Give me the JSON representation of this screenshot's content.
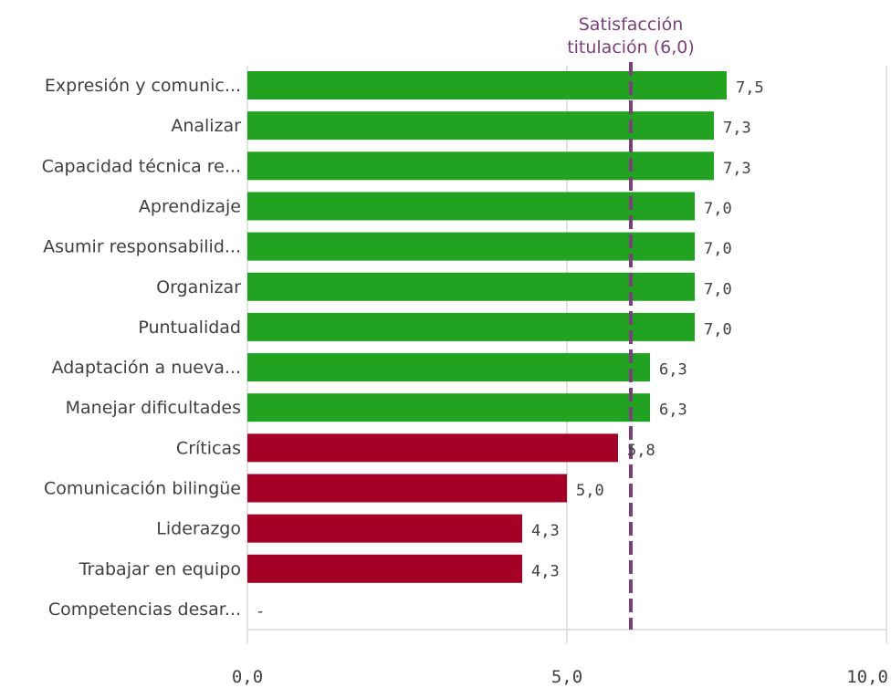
{
  "chart_data": {
    "type": "bar",
    "orientation": "horizontal",
    "categories": [
      "Expresión y comunic...",
      "Analizar",
      "Capacidad técnica re...",
      "Aprendizaje",
      "Asumir responsabilid...",
      "Organizar",
      "Puntualidad",
      "Adaptación a nueva...",
      "Manejar dificultades",
      "Críticas",
      "Comunicación bilingüe",
      "Liderazgo",
      "Trabajar en equipo",
      "Competencias desar..."
    ],
    "values": [
      7.5,
      7.3,
      7.3,
      7.0,
      7.0,
      7.0,
      7.0,
      6.3,
      6.3,
      5.8,
      5.0,
      4.3,
      4.3,
      null
    ],
    "value_labels": [
      "7,5",
      "7,3",
      "7,3",
      "7,0",
      "7,0",
      "7,0",
      "7,0",
      "6,3",
      "6,3",
      "5,8",
      "5,0",
      "4,3",
      "4,3",
      "-"
    ],
    "colors": {
      "above": "#21a321",
      "below": "#a50026",
      "reference_line": "#7b3f7b",
      "grid": "#d9d9d9",
      "text": "#404040"
    },
    "xlim": [
      0,
      10
    ],
    "x_ticks": [
      0,
      5,
      10
    ],
    "x_tick_labels": [
      "0,0",
      "5,0",
      "10,0"
    ],
    "grid": true,
    "reference_line": {
      "value": 6.0,
      "label_lines": [
        "Satisfacción",
        "titulación (6,0)"
      ]
    }
  }
}
